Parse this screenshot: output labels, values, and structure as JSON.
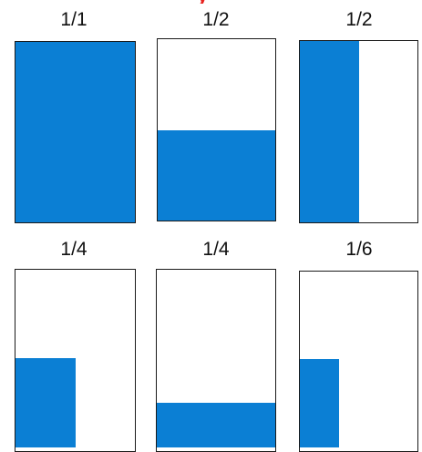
{
  "header": {
    "red_title_fragment": "y"
  },
  "accent_color": "#0b7fd4",
  "title_color": "#e8231f",
  "panels": [
    {
      "label": "1/1",
      "fraction": 1.0,
      "shaded_width_fraction": 1.0,
      "shaded_height_fraction": 1.0
    },
    {
      "label": "1/2",
      "fraction": 0.5,
      "shaded_width_fraction": 1.0,
      "shaded_height_fraction": 0.5
    },
    {
      "label": "1/2",
      "fraction": 0.5,
      "shaded_width_fraction": 0.5,
      "shaded_height_fraction": 1.0
    },
    {
      "label": "1/4",
      "fraction": 0.25,
      "shaded_width_fraction": 0.5,
      "shaded_height_fraction": 0.5
    },
    {
      "label": "1/4",
      "fraction": 0.25,
      "shaded_width_fraction": 1.0,
      "shaded_height_fraction": 0.25
    },
    {
      "label": "1/6",
      "fraction": 0.1667,
      "shaded_width_fraction": 0.33,
      "shaded_height_fraction": 0.5
    }
  ]
}
